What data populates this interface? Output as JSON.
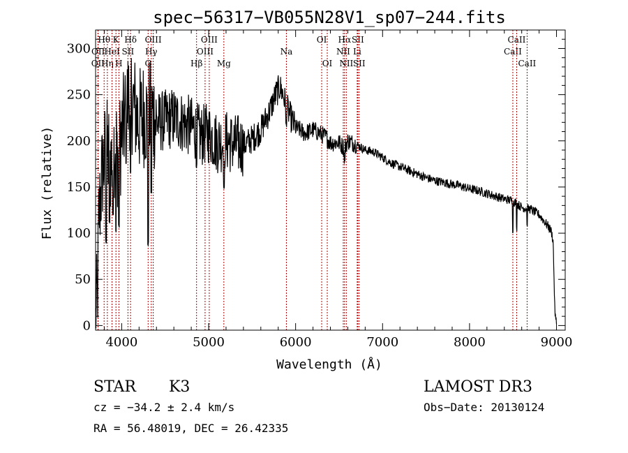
{
  "chart_data": {
    "type": "line",
    "title": "spec−56317−VB055N28V1_sp07−244.fits",
    "xlabel": "Wavelength (Å)",
    "ylabel": "Flux (relative)",
    "xlim": [
      3700,
      9100
    ],
    "ylim": [
      -5,
      320
    ],
    "xticks": [
      4000,
      5000,
      6000,
      7000,
      8000,
      9000
    ],
    "yticks": [
      0,
      50,
      100,
      150,
      200,
      250,
      300
    ],
    "grid": false,
    "line_color": "#000000",
    "marker_color": "#aa0000",
    "continuum": {
      "x": [
        3700,
        3720,
        3740,
        3780,
        3820,
        3850,
        3880,
        3920,
        3950,
        3980,
        4020,
        4060,
        4100,
        4150,
        4200,
        4250,
        4300,
        4350,
        4400,
        4500,
        4600,
        4700,
        4800,
        4860,
        4900,
        5000,
        5100,
        5200,
        5300,
        5400,
        5500,
        5600,
        5700,
        5780,
        5820,
        5850,
        5880,
        5900,
        5950,
        6000,
        6050,
        6100,
        6150,
        6200,
        6280,
        6350,
        6400,
        6500,
        6560,
        6600,
        6700,
        6800,
        6900,
        7000,
        7100,
        7200,
        7300,
        7400,
        7500,
        7600,
        7700,
        7800,
        7900,
        8000,
        8100,
        8200,
        8300,
        8400,
        8500,
        8600,
        8700,
        8800,
        8850,
        8900,
        8940,
        8960,
        8970,
        8980,
        8990,
        9000
      ],
      "y": [
        0,
        30,
        120,
        170,
        190,
        185,
        175,
        200,
        185,
        195,
        215,
        240,
        250,
        235,
        220,
        230,
        225,
        232,
        220,
        222,
        225,
        220,
        215,
        210,
        205,
        208,
        198,
        200,
        196,
        195,
        202,
        212,
        232,
        252,
        258,
        252,
        242,
        236,
        224,
        214,
        212,
        208,
        210,
        212,
        208,
        204,
        198,
        198,
        192,
        200,
        196,
        190,
        188,
        182,
        176,
        172,
        168,
        164,
        160,
        157,
        155,
        153,
        151,
        148,
        146,
        143,
        140,
        137,
        135,
        128,
        126,
        120,
        114,
        108,
        102,
        92,
        60,
        20,
        6,
        3
      ]
    },
    "absorption": [
      {
        "x": 3820,
        "y": 88
      },
      {
        "x": 3860,
        "y": 110
      },
      {
        "x": 3900,
        "y": 118
      },
      {
        "x": 3934,
        "y": 98
      },
      {
        "x": 3968,
        "y": 105
      },
      {
        "x": 4050,
        "y": 175
      },
      {
        "x": 4102,
        "y": 160
      },
      {
        "x": 4305,
        "y": 85
      },
      {
        "x": 4340,
        "y": 140
      },
      {
        "x": 4861,
        "y": 170
      },
      {
        "x": 5175,
        "y": 145
      },
      {
        "x": 5893,
        "y": 215
      },
      {
        "x": 6563,
        "y": 175
      },
      {
        "x": 8498,
        "y": 100
      },
      {
        "x": 8542,
        "y": 102
      },
      {
        "x": 8662,
        "y": 108
      }
    ],
    "lines": [
      {
        "label": "OII",
        "x": 3727,
        "row": 3
      },
      {
        "label": "OII",
        "x": 3729,
        "row": 2
      },
      {
        "label": "Hθ",
        "x": 3798,
        "row": 1
      },
      {
        "label": "Hη",
        "x": 3835,
        "row": 3
      },
      {
        "label": "HeI",
        "x": 3889,
        "row": 2
      },
      {
        "label": "K",
        "x": 3934,
        "row": 1
      },
      {
        "label": "H",
        "x": 3968,
        "row": 3
      },
      {
        "label": "SII",
        "x": 4072,
        "row": 2
      },
      {
        "label": "Hδ",
        "x": 4102,
        "row": 1
      },
      {
        "label": "G",
        "x": 4304,
        "row": 3
      },
      {
        "label": "Hγ",
        "x": 4340,
        "row": 2
      },
      {
        "label": "OIII",
        "x": 4363,
        "row": 1
      },
      {
        "label": "Hβ",
        "x": 4861,
        "row": 3
      },
      {
        "label": "OIII",
        "x": 4959,
        "row": 2
      },
      {
        "label": "OIII",
        "x": 5007,
        "row": 1
      },
      {
        "label": "Mg",
        "x": 5175,
        "row": 3
      },
      {
        "label": "Na",
        "x": 5894,
        "row": 2
      },
      {
        "label": "OI",
        "x": 6300,
        "row": 1
      },
      {
        "label": "OI",
        "x": 6364,
        "row": 3
      },
      {
        "label": "NII",
        "x": 6548,
        "row": 2
      },
      {
        "label": "Hα",
        "x": 6563,
        "row": 1
      },
      {
        "label": "NII",
        "x": 6583,
        "row": 3
      },
      {
        "label": "Li",
        "x": 6708,
        "row": 2
      },
      {
        "label": "SII",
        "x": 6716,
        "row": 1
      },
      {
        "label": "SII",
        "x": 6731,
        "row": 3
      },
      {
        "label": "CaII",
        "x": 8498,
        "row": 2
      },
      {
        "label": "CaII",
        "x": 8542,
        "row": 1
      },
      {
        "label": "CaII",
        "x": 8662,
        "row": 3
      }
    ]
  },
  "info": {
    "object_class": "STAR",
    "subclass": "K3",
    "survey": "LAMOST DR3",
    "cz": "cz = −34.2 ± 2.4 km/s",
    "obs_date": "Obs−Date: 20130124",
    "coords": "RA =  56.48019, DEC =  26.42335"
  }
}
